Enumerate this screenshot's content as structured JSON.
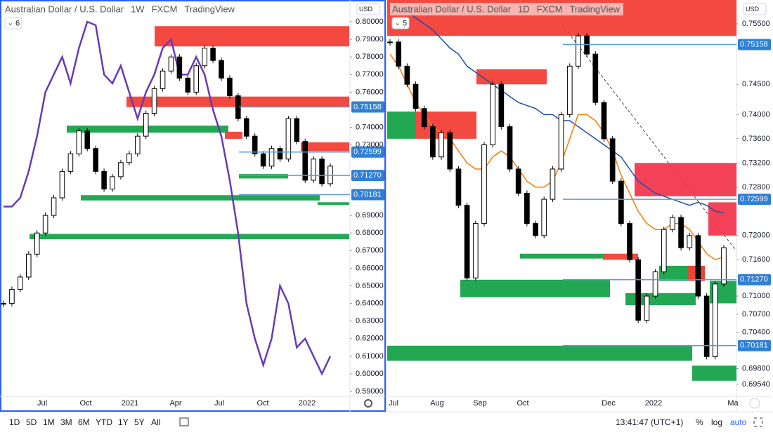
{
  "panels": [
    {
      "title": "Australian Dollar / U.S. Dollar",
      "interval": "1W",
      "source": "FXCM",
      "brand": "TradingView",
      "badge": "6",
      "currency": "USD",
      "ylim": [
        0.58725,
        0.81235
      ],
      "yticks": [
        {
          "value": 0.8,
          "label": "0.80000"
        },
        {
          "value": 0.79,
          "label": "0.79000"
        },
        {
          "value": 0.78,
          "label": "0.78000"
        },
        {
          "value": 0.77,
          "label": "0.77000"
        },
        {
          "value": 0.76,
          "label": "0.76000"
        },
        {
          "value": 0.74,
          "label": "0.74000"
        },
        {
          "value": 0.73,
          "label": "0.73000"
        },
        {
          "value": 0.69,
          "label": "0.69000"
        },
        {
          "value": 0.68,
          "label": "0.68000"
        },
        {
          "value": 0.67,
          "label": "0.67000"
        },
        {
          "value": 0.66,
          "label": "0.66000"
        },
        {
          "value": 0.65,
          "label": "0.65000"
        },
        {
          "value": 0.64,
          "label": "0.64000"
        },
        {
          "value": 0.63,
          "label": "0.63000"
        },
        {
          "value": 0.62,
          "label": "0.62000"
        },
        {
          "value": 0.61,
          "label": "0.61000"
        },
        {
          "value": 0.6,
          "label": "0.60000"
        },
        {
          "value": 0.59,
          "label": "0.59000"
        }
      ],
      "price_labels": [
        {
          "value": 0.75158,
          "label": "0.75158"
        },
        {
          "value": 0.72599,
          "label": "0.72599"
        },
        {
          "value": 0.7127,
          "label": "0.71270"
        },
        {
          "value": 0.70181,
          "label": "0.70181"
        }
      ],
      "time_labels": [
        "Jul",
        "Oct",
        "2021",
        "Apr",
        "Jul",
        "Oct",
        "2022"
      ],
      "closes": [
        0.64,
        0.648,
        0.655,
        0.668,
        0.68,
        0.69,
        0.7,
        0.715,
        0.725,
        0.738,
        0.728,
        0.715,
        0.705,
        0.712,
        0.72,
        0.725,
        0.735,
        0.748,
        0.762,
        0.772,
        0.78,
        0.768,
        0.76,
        0.775,
        0.785,
        0.778,
        0.768,
        0.758,
        0.745,
        0.735,
        0.725,
        0.718,
        0.728,
        0.722,
        0.745,
        0.732,
        0.71,
        0.722,
        0.708,
        0.718
      ],
      "overlays": [
        {
          "color": "#673ab7",
          "values": [
            0.695,
            0.695,
            0.7,
            0.715,
            0.735,
            0.76,
            0.77,
            0.78,
            0.765,
            0.785,
            0.8,
            0.798,
            0.77,
            0.765,
            0.775,
            0.76,
            0.745,
            0.76,
            0.77,
            0.785,
            0.79,
            0.77,
            0.77,
            0.78,
            0.77,
            0.75,
            0.735,
            0.71,
            0.68,
            0.64,
            0.62,
            0.605,
            0.62,
            0.65,
            0.64,
            0.615,
            0.62,
            0.61,
            0.6,
            0.61
          ]
        }
      ],
      "zones": [
        {
          "top": 0.7975,
          "bottom": 0.786,
          "color": "#f23f37"
        },
        {
          "top": 0.7575,
          "bottom": 0.7515,
          "color": "#f23f37"
        },
        {
          "top": 0.741,
          "bottom": 0.737,
          "color": "#16a34a"
        },
        {
          "top": 0.7375,
          "bottom": 0.7335,
          "color": "#f23f37"
        },
        {
          "top": 0.7315,
          "bottom": 0.7265,
          "color": "#f23f37"
        },
        {
          "top": 0.7135,
          "bottom": 0.711,
          "color": "#16a34a"
        },
        {
          "top": 0.7015,
          "bottom": 0.6985,
          "color": "#16a34a"
        },
        {
          "top": 0.6975,
          "bottom": 0.696,
          "color": "#16a34a"
        },
        {
          "top": 0.6795,
          "bottom": 0.6765,
          "color": "#16a34a"
        }
      ]
    },
    {
      "title": "Australian Dollar / U.S. Dollar",
      "interval": "1D",
      "source": "FXCM",
      "brand": "TradingView",
      "badge": "5",
      "currency": "USD",
      "ylim": [
        0.69343,
        0.75894
      ],
      "yticks": [
        {
          "value": 0.755,
          "label": "0.75500"
        },
        {
          "value": 0.745,
          "label": "0.74500"
        },
        {
          "value": 0.74,
          "label": "0.74000"
        },
        {
          "value": 0.736,
          "label": "0.73600"
        },
        {
          "value": 0.732,
          "label": "0.73200"
        },
        {
          "value": 0.728,
          "label": "0.72800"
        },
        {
          "value": 0.72,
          "label": "0.72000"
        },
        {
          "value": 0.716,
          "label": "0.71600"
        },
        {
          "value": 0.71,
          "label": "0.71000"
        },
        {
          "value": 0.707,
          "label": "0.70700"
        },
        {
          "value": 0.704,
          "label": "0.70400"
        },
        {
          "value": 0.698,
          "label": "0.69800"
        },
        {
          "value": 0.6954,
          "label": "0.69540"
        }
      ],
      "price_labels": [
        {
          "value": 0.75158,
          "label": "0.75158"
        },
        {
          "value": 0.72599,
          "label": "0.72599"
        },
        {
          "value": 0.7127,
          "label": "0.71270"
        },
        {
          "value": 0.70181,
          "label": "0.70181"
        }
      ],
      "time_labels": [
        "Jul",
        "Aug",
        "Sep",
        "Oct",
        "Dec",
        "2022",
        "Ma"
      ],
      "closes": [
        0.752,
        0.748,
        0.745,
        0.741,
        0.738,
        0.733,
        0.737,
        0.731,
        0.725,
        0.713,
        0.722,
        0.735,
        0.745,
        0.738,
        0.731,
        0.727,
        0.722,
        0.72,
        0.726,
        0.731,
        0.74,
        0.748,
        0.753,
        0.75,
        0.742,
        0.736,
        0.729,
        0.722,
        0.716,
        0.706,
        0.71,
        0.714,
        0.721,
        0.723,
        0.718,
        0.72,
        0.71,
        0.7,
        0.712,
        0.718
      ],
      "overlays": [
        {
          "color": "#1e4fa8",
          "values": [
            0.758,
            0.7575,
            0.757,
            0.756,
            0.755,
            0.754,
            0.7525,
            0.751,
            0.75,
            0.748,
            0.747,
            0.746,
            0.745,
            0.744,
            0.743,
            0.742,
            0.7415,
            0.741,
            0.74,
            0.74,
            0.739,
            0.739,
            0.738,
            0.737,
            0.736,
            0.735,
            0.734,
            0.733,
            0.731,
            0.729,
            0.728,
            0.727,
            0.7265,
            0.726,
            0.7255,
            0.725,
            0.7255,
            0.725,
            0.724,
            0.7238
          ]
        },
        {
          "color": "#f57c00",
          "values": [
            0.75,
            0.748,
            0.745,
            0.742,
            0.74,
            0.738,
            0.737,
            0.736,
            0.734,
            0.732,
            0.731,
            0.731,
            0.733,
            0.734,
            0.733,
            0.731,
            0.729,
            0.728,
            0.728,
            0.729,
            0.732,
            0.736,
            0.74,
            0.74,
            0.739,
            0.737,
            0.734,
            0.73,
            0.727,
            0.724,
            0.722,
            0.721,
            0.721,
            0.722,
            0.722,
            0.721,
            0.719,
            0.717,
            0.716,
            0.7165
          ]
        }
      ],
      "zones": [
        {
          "top": 0.759,
          "bottom": 0.753,
          "color": "#f23f37"
        },
        {
          "top": 0.7475,
          "bottom": 0.745,
          "color": "#f23f37"
        },
        {
          "top": 0.7405,
          "bottom": 0.736,
          "color": "#f23f37"
        },
        {
          "top": 0.7405,
          "bottom": 0.736,
          "color": "#16a34a"
        },
        {
          "top": 0.732,
          "bottom": 0.7265,
          "color": "#f2384e"
        },
        {
          "top": 0.7255,
          "bottom": 0.72,
          "color": "#f2384e"
        },
        {
          "top": 0.717,
          "bottom": 0.716,
          "color": "#f23f37"
        },
        {
          "top": 0.717,
          "bottom": 0.7162,
          "color": "#16a34a"
        },
        {
          "top": 0.715,
          "bottom": 0.7125,
          "color": "#16a34a"
        },
        {
          "top": 0.715,
          "bottom": 0.7125,
          "color": "#f23f37"
        },
        {
          "top": 0.7127,
          "bottom": 0.7098,
          "color": "#16a34a"
        },
        {
          "top": 0.7105,
          "bottom": 0.7085,
          "color": "#16a34a"
        },
        {
          "top": 0.7125,
          "bottom": 0.7088,
          "color": "#16a34a"
        },
        {
          "top": 0.7018,
          "bottom": 0.6993,
          "color": "#16a34a"
        },
        {
          "top": 0.6985,
          "bottom": 0.696,
          "color": "#16a34a"
        }
      ]
    }
  ],
  "toolbar": {
    "ranges": [
      "1D",
      "5D",
      "1M",
      "3M",
      "6M",
      "YTD",
      "1Y",
      "5Y",
      "All"
    ],
    "clock": "13:41:47 (UTC+1)",
    "scale_buttons": [
      "%",
      "log",
      "auto"
    ]
  }
}
